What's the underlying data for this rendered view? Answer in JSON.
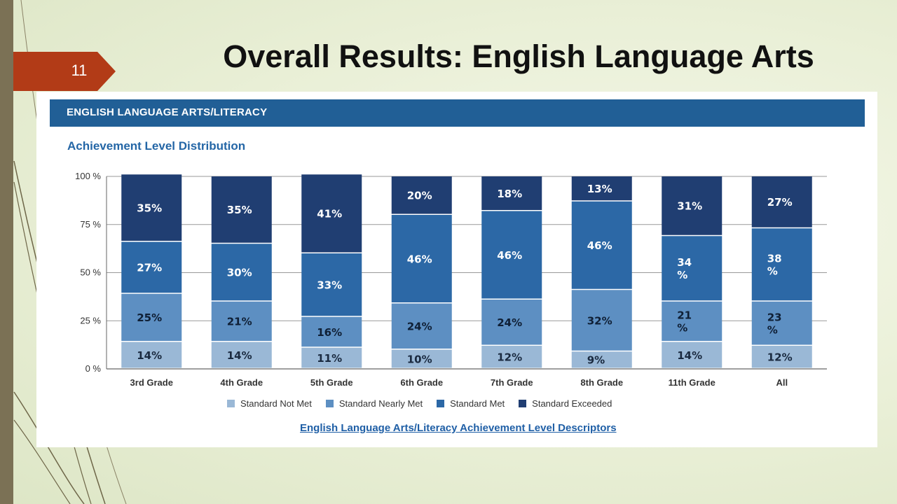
{
  "slide": {
    "number": "11",
    "title": "Overall Results: English Language Arts"
  },
  "panel": {
    "header": "ENGLISH LANGUAGE ARTS/LITERACY",
    "subtitle": "Achievement Level Distribution",
    "footer_link": "English Language Arts/Literacy Achievement Level Descriptors"
  },
  "colors": {
    "not_met": "#9ab8d6",
    "nearly_met": "#5d8fc2",
    "met": "#2c68a6",
    "exceeded": "#203e72",
    "slide_accent": "#b23b17",
    "header_bar": "#215f96"
  },
  "chart_data": {
    "type": "bar",
    "stacked": true,
    "ylim": [
      0,
      100
    ],
    "yticks": [
      "0 %",
      "25 %",
      "50 %",
      "75 %",
      "100 %"
    ],
    "categories": [
      "3rd Grade",
      "4th Grade",
      "5th Grade",
      "6th Grade",
      "7th Grade",
      "8th Grade",
      "11th Grade",
      "All"
    ],
    "series": [
      {
        "name": "Standard Not Met",
        "values": [
          14,
          14,
          11,
          10,
          12,
          9,
          14,
          12
        ],
        "labels": [
          "14%",
          "14%",
          "11%",
          "10%",
          "12%",
          "9%",
          "14%",
          "12%"
        ]
      },
      {
        "name": "Standard Nearly Met",
        "values": [
          25,
          21,
          16,
          24,
          24,
          32,
          21,
          23
        ],
        "labels": [
          "25%",
          "21%",
          "16%",
          "24%",
          "24%",
          "32%",
          "21\n%",
          "23\n%"
        ]
      },
      {
        "name": "Standard Met",
        "values": [
          27,
          30,
          33,
          46,
          46,
          46,
          34,
          38
        ],
        "labels": [
          "27%",
          "30%",
          "33%",
          "46%",
          "46%",
          "46%",
          "34\n%",
          "38\n%"
        ]
      },
      {
        "name": "Standard Exceeded",
        "values": [
          35,
          35,
          41,
          20,
          18,
          13,
          31,
          27
        ],
        "labels": [
          "35%",
          "35%",
          "41%",
          "20%",
          "18%",
          "13%",
          "31%",
          "27%"
        ]
      }
    ],
    "legend_position": "bottom",
    "grid": true
  }
}
